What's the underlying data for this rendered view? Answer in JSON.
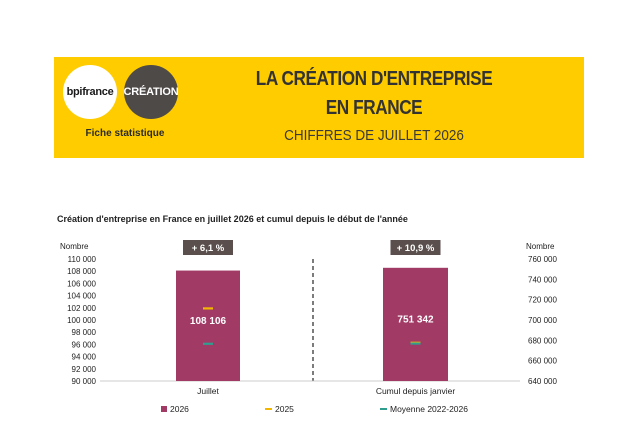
{
  "header": {
    "logo_bpi": "bpifrance",
    "logo_creation": "CRÉATION",
    "fiche": "Fiche statistique",
    "title_line1": "LA CRÉATION D'ENTREPRISE",
    "title_line2": "EN FRANCE",
    "subtitle": "CHIFFRES DE JUILLET 2026"
  },
  "colors": {
    "banner": "#ffcc00",
    "bar_2026": "#a23a66",
    "marker_2025": "#f2b800",
    "marker_moyenne": "#2f9e8f",
    "variation_box": "#5a4f4c"
  },
  "chart_data": {
    "type": "bar",
    "title": "Création d'entreprise en France en juillet 2026 et cumul depuis le début de l'année",
    "legend": [
      {
        "name": "2026",
        "color": "#a23a66",
        "shape": "square"
      },
      {
        "name": "2025",
        "color": "#f2b800",
        "shape": "line"
      },
      {
        "name": "Moyenne 2022-2026",
        "color": "#2f9e8f",
        "shape": "line"
      }
    ],
    "legend_position": "bottom",
    "panels": [
      {
        "category": "Juillet",
        "axis_label": "Nombre",
        "axis_side": "left",
        "ylim": [
          90000,
          110000
        ],
        "ticks": [
          "90 000",
          "92 000",
          "94 000",
          "96 000",
          "98 000",
          "100 000",
          "102 000",
          "104 000",
          "106 000",
          "108 000",
          "110 000"
        ],
        "tick_values": [
          90000,
          92000,
          94000,
          96000,
          98000,
          100000,
          102000,
          104000,
          106000,
          108000,
          110000
        ],
        "value_2026": 108106,
        "value_label": "108 106",
        "value_2025": 101900,
        "value_moyenne": 96100,
        "variation": "+ 6,1 %"
      },
      {
        "category": "Cumul depuis janvier",
        "axis_label": "Nombre",
        "axis_side": "right",
        "ylim": [
          640000,
          760000
        ],
        "ticks": [
          "640 000",
          "660 000",
          "680 000",
          "700 000",
          "720 000",
          "740 000",
          "760 000"
        ],
        "tick_values": [
          640000,
          660000,
          680000,
          700000,
          720000,
          740000,
          760000
        ],
        "value_2026": 751342,
        "value_label": "751 342",
        "value_2025": 677600,
        "value_moyenne": 676800,
        "variation": "+ 10,9 %"
      }
    ]
  }
}
